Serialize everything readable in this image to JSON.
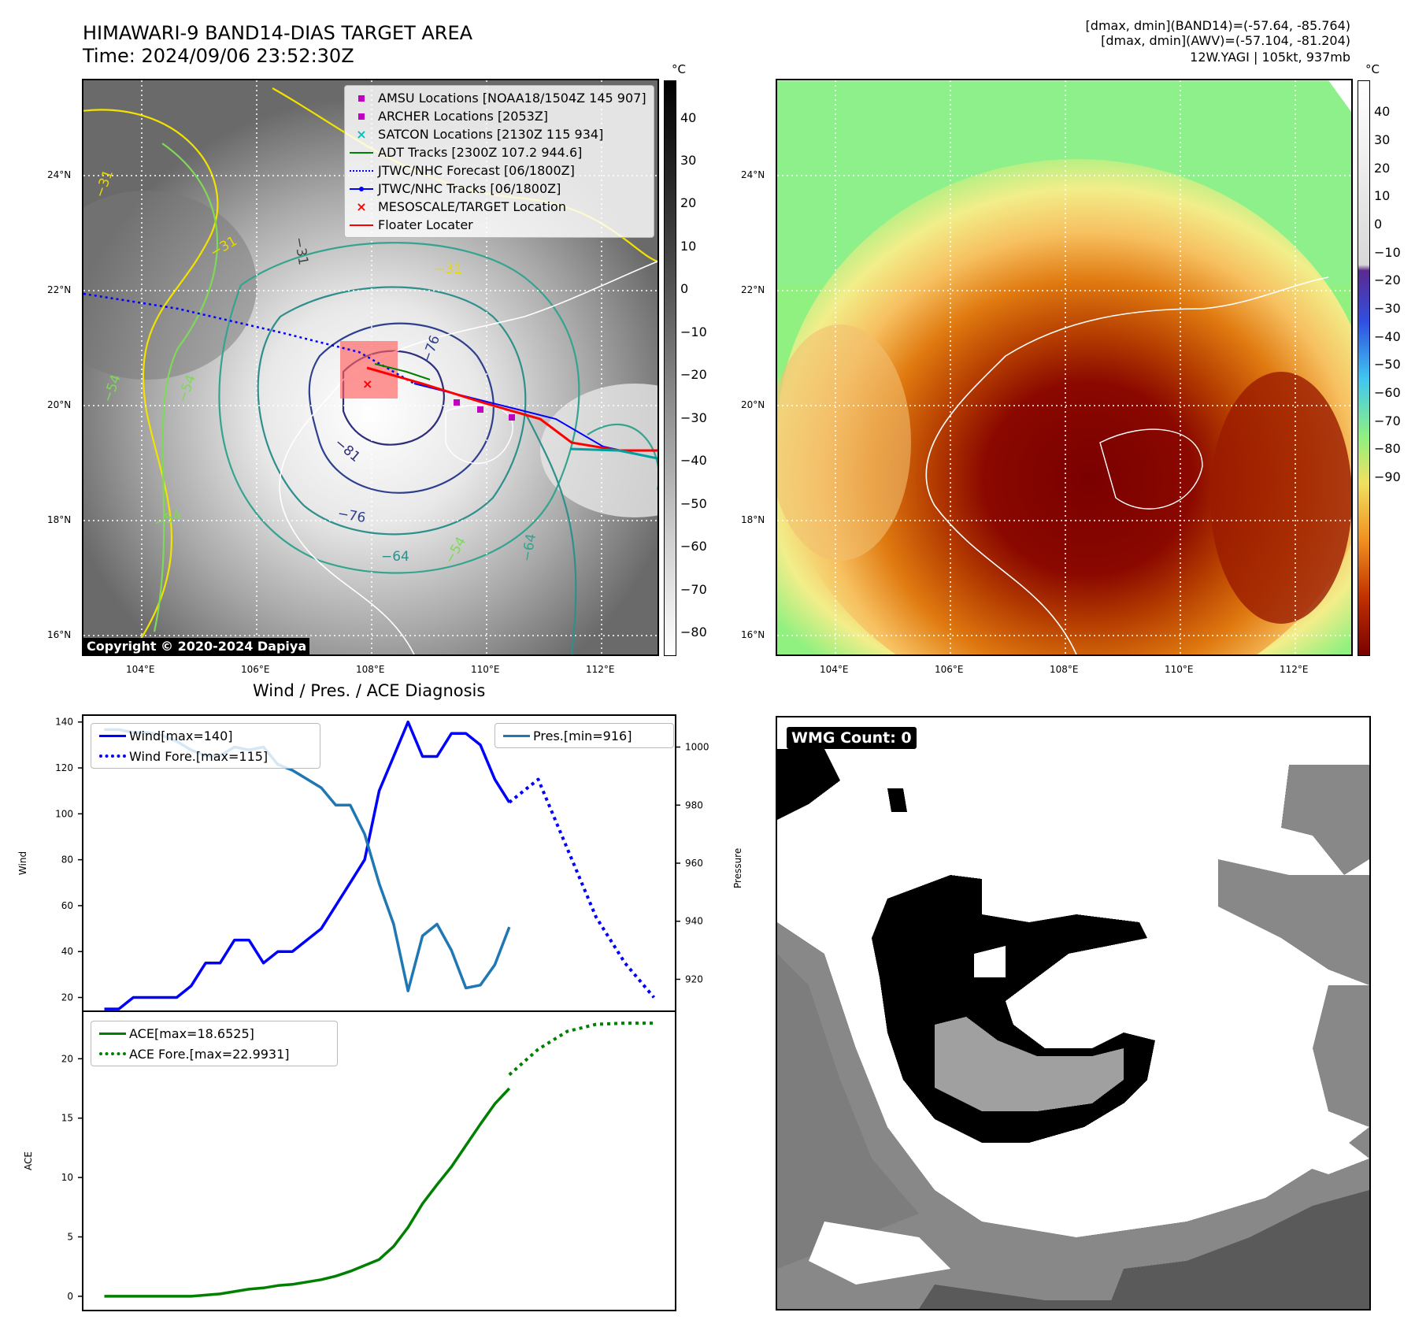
{
  "header": {
    "title_line1": "HIMAWARI-9 BAND14-DIAS TARGET AREA",
    "title_line2": "Time: 2024/09/06 23:52:30Z",
    "info_line1": "[dmax, dmin](BAND14)=(-57.64, -85.764)",
    "info_line2": "[dmax, dmin](AWV)=(-57.104, -81.204)",
    "info_line3": "12W.YAGI | 105kt, 937mb"
  },
  "map_axes": {
    "lat_labels": [
      "24°N",
      "22°N",
      "20°N",
      "18°N",
      "16°N"
    ],
    "lon_labels": [
      "104°E",
      "106°E",
      "108°E",
      "110°E",
      "112°E"
    ]
  },
  "ir_panel": {
    "colorbar_unit": "°C",
    "colorbar_ticks": [
      "40",
      "30",
      "20",
      "10",
      "0",
      "−10",
      "−20",
      "−30",
      "−40",
      "−50",
      "−60",
      "−70",
      "−80"
    ],
    "contour_labels": [
      "−31",
      "−31",
      "−31",
      "−31",
      "−54",
      "−54",
      "−54",
      "−54",
      "−64",
      "−64",
      "−76",
      "−81",
      "−76"
    ],
    "legend": [
      {
        "label": "AMSU Locations [NOAA18/1504Z 145 907]",
        "symbol": "square-marker",
        "color": "#c000c0"
      },
      {
        "label": "ARCHER Locations [2053Z]",
        "symbol": "square-marker",
        "color": "#c000c0"
      },
      {
        "label": "SATCON Locations [2130Z 115 934]",
        "symbol": "x-marker",
        "color": "#00c0c0"
      },
      {
        "label": "ADT Tracks [2300Z 107.2 944.6]",
        "symbol": "line",
        "color": "#008000"
      },
      {
        "label": "JTWC/NHC Forecast [06/1800Z]",
        "symbol": "dotted-line",
        "color": "#0000ff"
      },
      {
        "label": "JTWC/NHC Tracks [06/1800Z]",
        "symbol": "line-dot",
        "color": "#0000ff"
      },
      {
        "label": "MESOSCALE/TARGET Location",
        "symbol": "x-marker",
        "color": "#ff0000"
      },
      {
        "label": "Floater Locater",
        "symbol": "line",
        "color": "#ff0000"
      }
    ],
    "copyright": "Copyright © 2020-2024 Dapiya"
  },
  "awv_panel": {
    "colorbar_unit": "°C",
    "colorbar_ticks": [
      "40",
      "30",
      "20",
      "10",
      "0",
      "−10",
      "−20",
      "−30",
      "−40",
      "−50",
      "−60",
      "−70",
      "−80",
      "−90"
    ]
  },
  "diag_title": "Wind / Pres. / ACE Diagnosis",
  "wmg_label": "WMG Count: 0",
  "chart_data": [
    {
      "type": "line",
      "title": "Wind / Pres. / ACE Diagnosis",
      "ylabel": "Wind",
      "y2label": "Pressure",
      "ylim": [
        14,
        143
      ],
      "y2lim": [
        909,
        1011
      ],
      "yticks": [
        "20",
        "40",
        "60",
        "80",
        "100",
        "120",
        "140"
      ],
      "y2ticks": [
        "920",
        "940",
        "960",
        "980",
        "1000"
      ],
      "series": [
        {
          "name": "Wind[max=140]",
          "axis": "left",
          "color": "#0000ff",
          "style": "solid",
          "x": [
            0,
            1,
            2,
            3,
            4,
            5,
            6,
            7,
            8,
            9,
            10,
            11,
            12,
            13,
            14,
            15,
            16,
            17,
            18,
            19,
            20,
            21,
            22,
            23,
            24,
            25,
            26,
            27,
            28
          ],
          "values": [
            15,
            15,
            20,
            20,
            20,
            20,
            25,
            35,
            35,
            45,
            45,
            35,
            40,
            40,
            45,
            50,
            60,
            70,
            80,
            110,
            125,
            140,
            125,
            125,
            135,
            135,
            130,
            115,
            105
          ]
        },
        {
          "name": "Wind Fore.[max=115]",
          "axis": "left",
          "color": "#0000ff",
          "style": "dotted",
          "x": [
            28,
            30,
            32,
            34,
            36,
            38
          ],
          "values": [
            105,
            115,
            85,
            55,
            35,
            20
          ]
        },
        {
          "name": "Pres.[min=916]",
          "axis": "right",
          "color": "#1f77b4",
          "style": "solid",
          "x": [
            0,
            1,
            2,
            3,
            4,
            5,
            6,
            7,
            8,
            9,
            10,
            11,
            12,
            13,
            14,
            15,
            16,
            17,
            18,
            19,
            20,
            21,
            22,
            23,
            24,
            25,
            26,
            27,
            28
          ],
          "values": [
            1006,
            1006,
            1005,
            1005,
            1004,
            1002,
            999,
            997,
            997,
            1000,
            999,
            1000,
            994,
            992,
            989,
            986,
            980,
            980,
            970,
            953,
            939,
            916,
            935,
            939,
            930,
            917,
            918,
            925,
            938
          ]
        }
      ]
    },
    {
      "type": "line",
      "ylabel": "ACE",
      "ylim": [
        -1.2,
        24
      ],
      "yticks": [
        "0",
        "5",
        "10",
        "15",
        "20"
      ],
      "series": [
        {
          "name": "ACE[max=18.6525]",
          "color": "#008000",
          "style": "solid",
          "x": [
            0,
            1,
            2,
            3,
            4,
            5,
            6,
            7,
            8,
            9,
            10,
            11,
            12,
            13,
            14,
            15,
            16,
            17,
            18,
            19,
            20,
            21,
            22,
            23,
            24,
            25,
            26,
            27,
            28
          ],
          "values": [
            0,
            0,
            0,
            0,
            0,
            0,
            0,
            0.1,
            0.2,
            0.4,
            0.6,
            0.7,
            0.9,
            1.0,
            1.2,
            1.4,
            1.7,
            2.1,
            2.6,
            3.1,
            4.2,
            5.8,
            7.8,
            9.4,
            10.9,
            12.7,
            14.5,
            16.2,
            17.5
          ]
        },
        {
          "name": "ACE Fore.[max=22.9931]",
          "color": "#008000",
          "style": "dotted",
          "x": [
            28,
            30,
            32,
            34,
            36,
            38
          ],
          "values": [
            18.65,
            20.8,
            22.3,
            22.9,
            23.0,
            23.0
          ]
        }
      ]
    }
  ]
}
